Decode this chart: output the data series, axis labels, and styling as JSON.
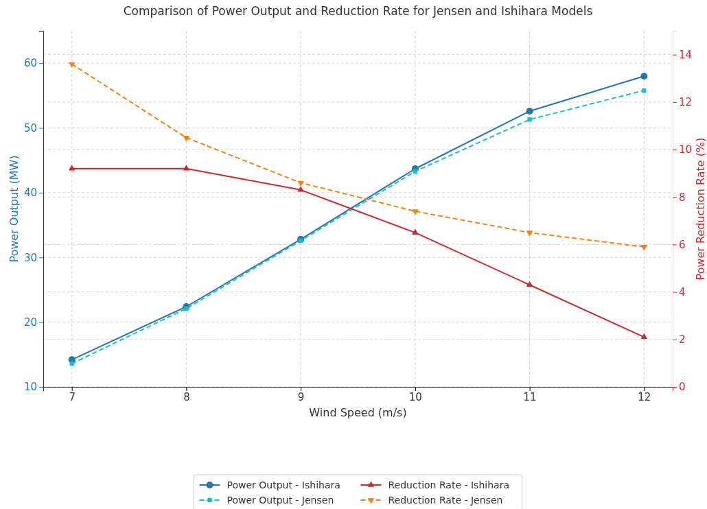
{
  "chart_data": {
    "type": "line",
    "title": "Comparison of Power Output and Reduction Rate for Jensen and Ishihara Models",
    "xlabel": "Wind Speed (m/s)",
    "ylabel": "Power Output (MW)",
    "y2label": "Power Reduction Rate (%)",
    "x": [
      7,
      8,
      9,
      10,
      11,
      12
    ],
    "xlim": [
      6.75,
      12.25
    ],
    "xticks": [
      7,
      8,
      9,
      10,
      11,
      12
    ],
    "ylim": [
      10,
      65
    ],
    "yticks": [
      10,
      20,
      30,
      40,
      50,
      60
    ],
    "y2lim": [
      0,
      15
    ],
    "y2ticks": [
      0,
      2,
      4,
      6,
      8,
      10,
      12,
      14
    ],
    "grid": true,
    "legend": "bottom",
    "series": [
      {
        "name": "Power Output - Ishihara",
        "color": "#1f77b4",
        "marker": "circle",
        "line_style": "solid",
        "values": [
          14.2,
          22.4,
          32.8,
          43.7,
          52.6,
          58.0
        ]
      },
      {
        "name": "Power Output - Jensen",
        "color": "#17becf",
        "marker": "square",
        "line_style": "dashed",
        "values": [
          13.6,
          22.1,
          32.6,
          43.3,
          51.3,
          55.8
        ]
      },
      {
        "name": "Reduction Rate - Ishihara",
        "color": "#d62728",
        "marker": "triangle",
        "line_style": "solid",
        "axis": "y2",
        "values": [
          9.2,
          9.2,
          8.3,
          6.5,
          4.3,
          2.1
        ]
      },
      {
        "name": "Reduction Rate - Jensen",
        "color": "#ff7f0e",
        "marker": "triangle-down",
        "line_style": "dashed",
        "axis": "y2",
        "values": [
          13.6,
          10.5,
          8.6,
          7.4,
          6.5,
          5.9
        ]
      }
    ]
  }
}
